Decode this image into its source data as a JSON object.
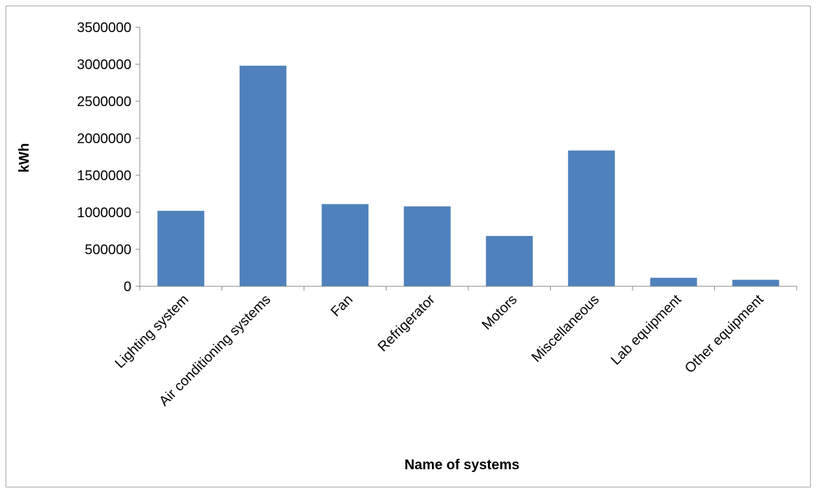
{
  "chart_data": {
    "type": "bar",
    "title": "",
    "xlabel": "Name of systems",
    "ylabel": "kWh",
    "categories": [
      "Lighting system",
      "Air conditioning systems",
      "Fan",
      "Refrigerator",
      "Motors",
      "Miscellaneous",
      "Lab equipment",
      "Other equipment"
    ],
    "values": [
      1020000,
      2980000,
      1110000,
      1080000,
      680000,
      1835000,
      115000,
      88000
    ],
    "ylim": [
      0,
      3500000
    ],
    "yticks": [
      "0",
      "500000",
      "1000000",
      "1500000",
      "2000000",
      "2500000",
      "3000000",
      "3500000"
    ],
    "grid": false,
    "legend": "none",
    "bar_color": "#4f81bd"
  }
}
